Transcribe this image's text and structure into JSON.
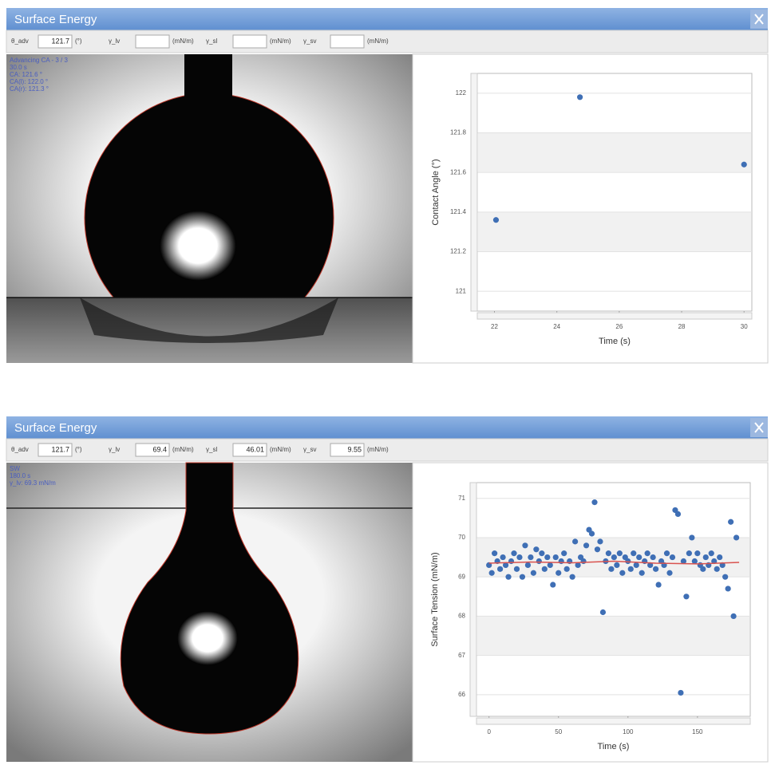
{
  "windows": [
    {
      "title": "Surface Energy",
      "toolbar": [
        {
          "label": "θ_adv",
          "value": "121.7",
          "unit": "(°)"
        },
        {
          "label": "γ_lv",
          "unit": "(mN/m)"
        },
        {
          "label": "γ_sl",
          "unit": "(mN/m)"
        },
        {
          "label": "γ_sv",
          "unit": "(mN/m)"
        }
      ],
      "overlay": [
        "Advancing CA - 3 / 3",
        "30.0 s",
        "CA: 121.6 °",
        "CA(l): 122.0 °",
        "CA(r): 121.3 °"
      ]
    },
    {
      "title": "Surface Energy",
      "toolbar": [
        {
          "label": "θ_adv",
          "value": "121.7",
          "unit": "(°)"
        },
        {
          "label": "γ_lv",
          "value": "69.4",
          "unit": "(mN/m)"
        },
        {
          "label": "γ_sl",
          "value": "46.01",
          "unit": "(mN/m)"
        },
        {
          "label": "γ_sv",
          "value": "9.55",
          "unit": "(mN/m)"
        }
      ],
      "overlay": [
        "SW",
        "180.0 s",
        "γ_lv: 69.3 mN/m"
      ]
    }
  ],
  "chart_data": [
    {
      "type": "scatter",
      "x_label": "Time (s)",
      "y_label": "Contact Angle (°)",
      "x": [
        22.05,
        24.74,
        30
      ],
      "values": [
        121.36,
        121.98,
        121.64
      ],
      "color": "#3f6fb5",
      "xlim": [
        21.45,
        30.25
      ],
      "ylim": [
        120.9,
        122.1
      ],
      "xticks": [
        22,
        24,
        26,
        28,
        30
      ],
      "yticks": [
        121,
        121.2,
        121.4,
        121.6,
        121.8,
        122
      ]
    },
    {
      "type": "scatter",
      "x_label": "Time (s)",
      "y_label": "Surface Tension (mN/m)",
      "x": [
        0,
        2,
        4,
        6,
        8,
        10,
        12,
        14,
        16,
        18,
        20,
        22,
        24,
        26,
        28,
        30,
        32,
        34,
        36,
        38,
        40,
        42,
        44,
        46,
        48,
        50,
        52,
        54,
        56,
        58,
        60,
        62,
        64,
        66,
        68,
        70,
        72,
        74,
        76,
        78,
        80,
        82,
        84,
        86,
        88,
        90,
        92,
        94,
        96,
        98,
        100,
        102,
        104,
        106,
        108,
        110,
        112,
        114,
        116,
        118,
        120,
        122,
        124,
        126,
        128,
        130,
        132,
        134,
        136,
        138,
        140,
        142,
        144,
        146,
        148,
        150,
        152,
        154,
        156,
        158,
        160,
        162,
        164,
        166,
        168,
        170,
        172,
        174,
        176,
        178
      ],
      "values": [
        69.3,
        69.1,
        69.6,
        69.4,
        69.2,
        69.5,
        69.3,
        69.0,
        69.4,
        69.6,
        69.2,
        69.5,
        69.0,
        69.8,
        69.3,
        69.5,
        69.1,
        69.7,
        69.4,
        69.6,
        69.2,
        69.5,
        69.3,
        68.8,
        69.5,
        69.1,
        69.4,
        69.6,
        69.2,
        69.4,
        69.0,
        69.9,
        69.3,
        69.5,
        69.4,
        69.8,
        70.2,
        70.1,
        70.9,
        69.7,
        69.9,
        68.1,
        69.4,
        69.6,
        69.2,
        69.5,
        69.3,
        69.6,
        69.1,
        69.5,
        69.4,
        69.2,
        69.6,
        69.3,
        69.5,
        69.1,
        69.4,
        69.6,
        69.3,
        69.5,
        69.2,
        68.8,
        69.4,
        69.3,
        69.6,
        69.1,
        69.5,
        70.7,
        70.6,
        66.05,
        69.4,
        68.5,
        69.6,
        70.0,
        69.4,
        69.6,
        69.3,
        69.2,
        69.5,
        69.3,
        69.6,
        69.4,
        69.2,
        69.5,
        69.3,
        69.0,
        68.7,
        70.4,
        68.0,
        70.0
      ],
      "color": "#3f6fb5",
      "fit_line": {
        "x": [
          0,
          30,
          60,
          90,
          120,
          150,
          180
        ],
        "values": [
          69.35,
          69.38,
          69.36,
          69.4,
          69.35,
          69.33,
          69.37
        ],
        "color": "#d9534f"
      },
      "xlim": [
        -9,
        188
      ],
      "ylim": [
        65.45,
        71.4
      ],
      "xticks": [
        0,
        50,
        100,
        150
      ],
      "yticks": [
        66,
        67,
        68,
        69,
        70,
        71
      ]
    }
  ]
}
